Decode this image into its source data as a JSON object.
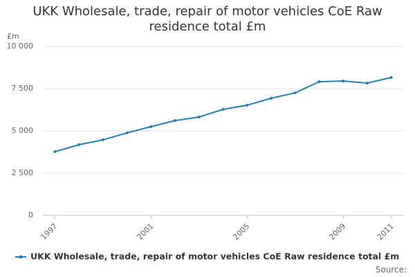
{
  "chart_data": {
    "type": "line",
    "title": "UKK Wholesale, trade, repair of motor vehicles CoE Raw residence total £m",
    "y_axis_label": "£m",
    "source": "Source:",
    "x": [
      1997,
      1998,
      1999,
      2000,
      2001,
      2002,
      2003,
      2004,
      2005,
      2006,
      2007,
      2008,
      2009,
      2010,
      2011
    ],
    "series": [
      {
        "name": "UKK Wholesale, trade, repair of motor vehicles CoE Raw residence total £m",
        "color": "#1f7fb6",
        "values": [
          3770,
          4180,
          4470,
          4880,
          5250,
          5610,
          5820,
          6270,
          6520,
          6930,
          7250,
          7910,
          7950,
          7830,
          8160
        ]
      }
    ],
    "xlim": [
      1996.5,
      2011.5
    ],
    "xticks": [
      1997,
      2001,
      2005,
      2009,
      2011
    ],
    "ylim": [
      0,
      10000
    ],
    "yticks": [
      0,
      {
        "value": 2500,
        "label": "2 500"
      },
      {
        "value": 5000,
        "label": "5 000"
      },
      {
        "value": 7500,
        "label": "7 500"
      },
      {
        "value": 10000,
        "label": "10 000"
      }
    ],
    "grid": true
  }
}
